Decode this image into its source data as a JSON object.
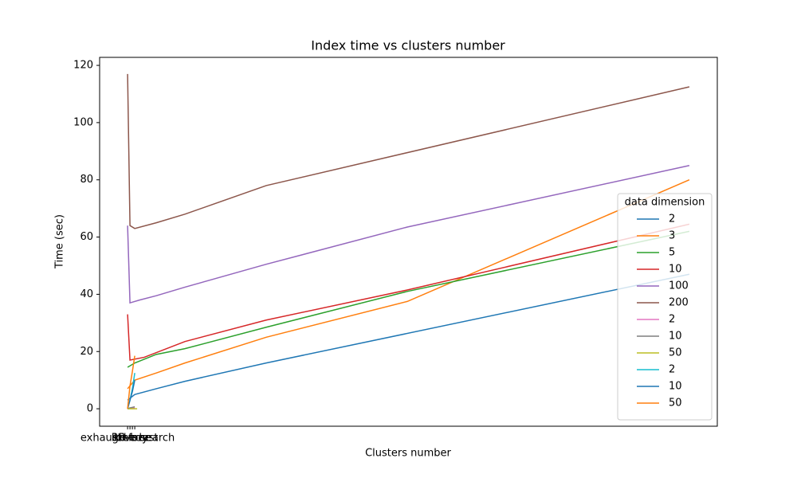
{
  "chart_data": {
    "type": "line",
    "title": "Index time vs clusters number",
    "xlabel": "Clusters number",
    "ylabel": "Time (sec)",
    "legend_title": "data dimension",
    "legend_position": "lower right",
    "xlim": [
      -11.7,
      246.7
    ],
    "xticks": [
      {
        "value": 0,
        "label": "exhaustive search"
      },
      {
        "value": 1,
        "label": "greedy"
      },
      {
        "value": 2,
        "label": "kd-tree"
      },
      {
        "value": 3,
        "label": "RP-forest"
      }
    ],
    "ylim": [
      -6.1,
      122.8
    ],
    "yticks": [
      0,
      20,
      40,
      60,
      80,
      100,
      120
    ],
    "series": [
      {
        "name": "2",
        "color": "#1f77b4",
        "x": [
          0,
          3,
          12,
          24,
          58,
          235
        ],
        "values": [
          3,
          5,
          7,
          9.6,
          16,
          47
        ]
      },
      {
        "name": "3",
        "color": "#ff7f0e",
        "x": [
          0,
          3,
          12,
          24,
          58,
          117,
          235
        ],
        "values": [
          7,
          10,
          12.5,
          16,
          25,
          37.5,
          80
        ]
      },
      {
        "name": "5",
        "color": "#2ca02c",
        "x": [
          0,
          3,
          12,
          24,
          58,
          117,
          235
        ],
        "values": [
          14.5,
          16,
          19,
          21,
          28.5,
          41,
          62
        ]
      },
      {
        "name": "10",
        "color": "#d62728",
        "x": [
          0,
          1,
          7,
          24,
          58,
          117,
          235
        ],
        "values": [
          33,
          17,
          18,
          23.5,
          31,
          41.5,
          64.5
        ]
      },
      {
        "name": "100",
        "color": "#9467bd",
        "x": [
          0,
          1,
          5,
          12,
          24,
          58,
          117,
          235
        ],
        "values": [
          64,
          37,
          38,
          39.5,
          42.5,
          50.5,
          63.5,
          85
        ]
      },
      {
        "name": "200",
        "color": "#8c564b",
        "x": [
          0,
          1,
          3,
          12,
          24,
          58,
          235
        ],
        "values": [
          117,
          64,
          63,
          65,
          68,
          78,
          112.5
        ]
      },
      {
        "name": "2",
        "color": "#e377c2",
        "x": [
          0,
          1,
          2,
          3
        ],
        "values": [
          0,
          0.2,
          0.3,
          0.4
        ]
      },
      {
        "name": "10",
        "color": "#7f7f7f",
        "x": [
          0,
          1,
          2,
          3
        ],
        "values": [
          0,
          0.3,
          0.5,
          0.7
        ]
      },
      {
        "name": "50",
        "color": "#bcbd22",
        "x": [
          0,
          2,
          4
        ],
        "values": [
          0,
          0,
          0
        ]
      },
      {
        "name": "2",
        "color": "#17becf",
        "x": [
          0,
          1,
          2,
          3
        ],
        "values": [
          0,
          3,
          7,
          12.5
        ]
      },
      {
        "name": "10",
        "color": "#1f77b4",
        "x": [
          0,
          1,
          2,
          3
        ],
        "values": [
          0,
          3,
          6,
          10
        ]
      },
      {
        "name": "50",
        "color": "#ff7f0e",
        "x": [
          0,
          1,
          2,
          3
        ],
        "values": [
          0,
          8,
          13,
          18.5
        ]
      }
    ]
  }
}
